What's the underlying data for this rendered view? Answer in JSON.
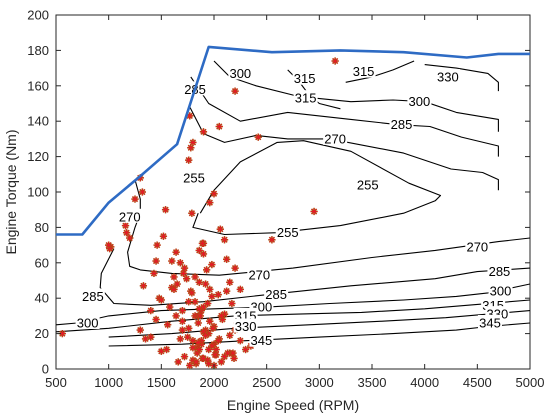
{
  "chart_data": {
    "type": "scatter",
    "title": "",
    "xlabel": "Engine Speed (RPM)",
    "ylabel": "Engine Torque (Nm)",
    "xlim": [
      500,
      5000
    ],
    "ylim": [
      0,
      200
    ],
    "xticks": [
      500,
      1000,
      1500,
      2000,
      2500,
      3000,
      3500,
      4000,
      4500,
      5000
    ],
    "yticks": [
      0,
      20,
      40,
      60,
      80,
      100,
      120,
      140,
      160,
      180,
      200
    ],
    "grid": false,
    "legend": "none",
    "colors": {
      "max_torque_line": "#2e6bc4",
      "contour": "#000000",
      "operating_points": "#e8182a",
      "operating_points_edge": "#8a6a00"
    },
    "max_torque_curve": {
      "x": [
        500,
        750,
        1000,
        1300,
        1650,
        1950,
        2550,
        3200,
        3800,
        4400,
        4700,
        5000
      ],
      "y": [
        76,
        76,
        94,
        109,
        127,
        182,
        179,
        180,
        179,
        176,
        178,
        178
      ]
    },
    "contour_labels": [
      {
        "text": "285",
        "x": 1820,
        "y": 158
      },
      {
        "text": "300",
        "x": 2250,
        "y": 167
      },
      {
        "text": "315",
        "x": 2860,
        "y": 164
      },
      {
        "text": "315",
        "x": 2870,
        "y": 153
      },
      {
        "text": "315",
        "x": 3420,
        "y": 168
      },
      {
        "text": "330",
        "x": 4220,
        "y": 165
      },
      {
        "text": "300",
        "x": 3950,
        "y": 151
      },
      {
        "text": "285",
        "x": 3780,
        "y": 138
      },
      {
        "text": "270",
        "x": 3150,
        "y": 130
      },
      {
        "text": "255",
        "x": 1810,
        "y": 108
      },
      {
        "text": "255",
        "x": 3460,
        "y": 104
      },
      {
        "text": "255",
        "x": 2700,
        "y": 77
      },
      {
        "text": "270",
        "x": 1200,
        "y": 86
      },
      {
        "text": "270",
        "x": 4500,
        "y": 69
      },
      {
        "text": "270",
        "x": 2430,
        "y": 53
      },
      {
        "text": "285",
        "x": 4710,
        "y": 55
      },
      {
        "text": "285",
        "x": 850,
        "y": 41
      },
      {
        "text": "285",
        "x": 2590,
        "y": 42
      },
      {
        "text": "300",
        "x": 4720,
        "y": 44
      },
      {
        "text": "300",
        "x": 2450,
        "y": 35
      },
      {
        "text": "300",
        "x": 800,
        "y": 26
      },
      {
        "text": "315",
        "x": 4650,
        "y": 36
      },
      {
        "text": "315",
        "x": 2300,
        "y": 30
      },
      {
        "text": "330",
        "x": 4690,
        "y": 31
      },
      {
        "text": "330",
        "x": 2300,
        "y": 24
      },
      {
        "text": "345",
        "x": 4620,
        "y": 26
      },
      {
        "text": "345",
        "x": 2450,
        "y": 16
      }
    ],
    "contours": [
      {
        "level": 255,
        "x": [
          1870,
          2000,
          2250,
          2600,
          2850,
          3300,
          3850,
          4150,
          4100,
          3800,
          3200,
          2600,
          2100,
          1800,
          1850
        ],
        "y": [
          88,
          101,
          117,
          128,
          129,
          123,
          105,
          98,
          95,
          88,
          81,
          77,
          76,
          80,
          88
        ]
      },
      {
        "level": 270,
        "x": [
          1770,
          1900,
          2100,
          2400,
          2700,
          3100,
          3800,
          4250,
          4550,
          4700,
          4700
        ],
        "y": [
          148,
          133,
          128,
          132,
          130,
          130,
          122,
          113,
          111,
          107,
          101
        ]
      },
      {
        "level": 270,
        "x": [
          1250,
          1300,
          1300,
          1250,
          1180,
          1200,
          1300,
          1600,
          2050,
          2750,
          3500,
          4100,
          4700,
          5000
        ],
        "y": [
          107,
          96,
          88,
          80,
          66,
          58,
          56,
          54,
          53,
          57,
          63,
          67,
          72,
          74
        ]
      },
      {
        "level": 285,
        "x": [
          1780,
          1950,
          2250,
          2700,
          3300,
          3750,
          4050,
          4350,
          4700,
          4700
        ],
        "y": [
          165,
          150,
          140,
          145,
          141,
          138,
          137,
          131,
          126,
          120
        ]
      },
      {
        "level": 285,
        "x": [
          1050,
          930,
          920,
          1050,
          1400,
          1900,
          2500,
          3300,
          4100,
          4500,
          5000
        ],
        "y": [
          68,
          54,
          46,
          37,
          36,
          38,
          42,
          47,
          51,
          55,
          57
        ]
      },
      {
        "level": 300,
        "x": [
          2000,
          2150,
          2400,
          2800,
          3300,
          3700,
          4000,
          4300,
          4700,
          4700
        ],
        "y": [
          174,
          165,
          160,
          154,
          151,
          152,
          151,
          145,
          141,
          134
        ]
      },
      {
        "level": 300,
        "x": [
          500,
          700,
          1000,
          1500,
          2000,
          2500,
          3100,
          3800,
          4300,
          4600,
          5000
        ],
        "y": [
          25,
          26,
          30,
          33,
          34,
          35,
          37,
          39,
          41,
          43,
          48
        ]
      },
      {
        "level": 315,
        "x": [
          2700,
          2800,
          2900,
          3000,
          3200
        ],
        "y": [
          169,
          163,
          155,
          150,
          147
        ]
      },
      {
        "level": 315,
        "x": [
          3250,
          3500,
          3700,
          3900
        ],
        "y": [
          162,
          165,
          169,
          174
        ]
      },
      {
        "level": 315,
        "x": [
          500,
          1000,
          1600,
          2200,
          2800,
          3400,
          4000,
          4400,
          5000
        ],
        "y": [
          21,
          23,
          27,
          30,
          31,
          32,
          34,
          36,
          39
        ]
      },
      {
        "level": 330,
        "x": [
          4000,
          4300,
          4600,
          4700,
          4700
        ],
        "y": [
          172,
          170,
          167,
          162,
          157
        ]
      },
      {
        "level": 330,
        "x": [
          1000,
          1600,
          2200,
          2900,
          3600,
          4200,
          4600,
          5000
        ],
        "y": [
          18,
          20,
          23,
          25,
          27,
          29,
          31,
          33
        ]
      },
      {
        "level": 345,
        "x": [
          1000,
          1700,
          2300,
          3000,
          3700,
          4300,
          4600,
          5000
        ],
        "y": [
          13,
          14,
          16,
          18,
          20,
          22,
          24,
          26
        ]
      }
    ],
    "operating_points": {
      "x": [
        560,
        1020,
        1010,
        1000,
        1150,
        1160,
        1170,
        1200,
        1220,
        1250,
        1300,
        1320,
        1330,
        1400,
        1430,
        1450,
        1460,
        1480,
        1500,
        1520,
        1540,
        1560,
        1580,
        1600,
        1620,
        1640,
        1660,
        1680,
        1700,
        1720,
        1740,
        1760,
        1780,
        1800,
        1820,
        1840,
        1860,
        1880,
        1900,
        1920,
        1940,
        1960,
        1980,
        2000,
        2020,
        2040,
        2060,
        2080,
        2100,
        2120,
        2150,
        2200,
        2250,
        1700,
        1720,
        1740,
        1760,
        1780,
        1800,
        1820,
        1840,
        1860,
        1880,
        1900,
        1920,
        1940,
        1960,
        1980,
        2000,
        2050,
        2100,
        2150,
        2200,
        2250,
        2300,
        2350,
        1650,
        1680,
        1710,
        1760,
        1790,
        1820,
        1850,
        1880,
        1900,
        1930,
        1960,
        1990,
        2020,
        2070,
        2120,
        2170,
        2220,
        1600,
        1620,
        1640,
        1700,
        1750,
        1800,
        1850,
        1900,
        1950,
        2000,
        2100,
        2150,
        1770,
        1800,
        1830,
        1860,
        1890,
        1920,
        1950,
        1980,
        2010,
        2040,
        2070,
        2130,
        2190,
        1300,
        1350,
        1400,
        1450,
        1500,
        1550,
        1860,
        1870,
        1790,
        1890,
        1900,
        2050,
        2200,
        2420,
        2550,
        2950,
        3150,
        1770,
        2180,
        1830,
        1850,
        1900,
        1950,
        2000
      ],
      "y": [
        20,
        69,
        68,
        70,
        85,
        81,
        77,
        74,
        86,
        96,
        108,
        100,
        47,
        18,
        54,
        61,
        70,
        40,
        10,
        75,
        90,
        25,
        35,
        46,
        52,
        66,
        4,
        17,
        27,
        57,
        110,
        118,
        125,
        128,
        30,
        9,
        49,
        14,
        65,
        22,
        37,
        94,
        59,
        99,
        11,
        42,
        79,
        28,
        73,
        62,
        19,
        57,
        45,
        33,
        7,
        51,
        23,
        44,
        16,
        38,
        12,
        67,
        33,
        21,
        48,
        5,
        27,
        41,
        24,
        17,
        31,
        9,
        22,
        16,
        11,
        13,
        48,
        60,
        54,
        38,
        43,
        52,
        30,
        16,
        71,
        56,
        45,
        23,
        8,
        30,
        44,
        37,
        26,
        61,
        45,
        30,
        22,
        18,
        12,
        26,
        35,
        20,
        14,
        7,
        49,
        2,
        5,
        3,
        11,
        6,
        19,
        3,
        13,
        8,
        16,
        4,
        9,
        6,
        22,
        17,
        33,
        28,
        39,
        11,
        34,
        30,
        88,
        71,
        134,
        137,
        157,
        131,
        73,
        89,
        174,
        143,
        9,
        4,
        15,
        6,
        11,
        2
      ]
    }
  }
}
